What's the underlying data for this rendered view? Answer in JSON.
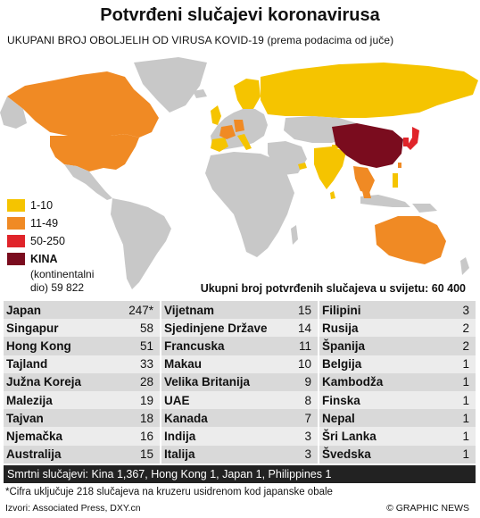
{
  "title": "Potvrđeni slučajevi koronavirusa",
  "subtitle": "UKUPANI BROJ OBOLJELIH OD VIRUSA KOVID-19  (prema podacima od juče)",
  "colors": {
    "land": "#c8c8c8",
    "cat_1_10": "#f5c400",
    "cat_11_49": "#f08a24",
    "cat_50_250": "#e0242a",
    "china": "#7a0c1e"
  },
  "legend": {
    "items": [
      {
        "label": "1-10",
        "color": "#f5c400"
      },
      {
        "label": "11-49",
        "color": "#f08a24"
      },
      {
        "label": "50-250",
        "color": "#e0242a"
      },
      {
        "label": "KINA",
        "color": "#7a0c1e"
      }
    ],
    "china_note_line1": "(kontinentalni",
    "china_note_line2": "dio) 59 822"
  },
  "world_total": "Ukupni broj potvrđenih slučajeva u svijetu: 60 400",
  "table": {
    "col1": [
      {
        "name": "Japan",
        "value": "247*"
      },
      {
        "name": "Singapur",
        "value": "58"
      },
      {
        "name": "Hong Kong",
        "value": "51"
      },
      {
        "name": "Tajland",
        "value": "33"
      },
      {
        "name": "Južna Koreja",
        "value": "28"
      },
      {
        "name": "Malezija",
        "value": "19"
      },
      {
        "name": "Tajvan",
        "value": "18"
      },
      {
        "name": "Njemačka",
        "value": "16"
      },
      {
        "name": "Australija",
        "value": "15"
      }
    ],
    "col2": [
      {
        "name": "Vijetnam",
        "value": "15"
      },
      {
        "name": "Sjedinjene Države",
        "value": "14"
      },
      {
        "name": "Francuska",
        "value": "11"
      },
      {
        "name": "Makau",
        "value": "10"
      },
      {
        "name": "Velika Britanija",
        "value": "9"
      },
      {
        "name": "UAE",
        "value": "8"
      },
      {
        "name": "Kanada",
        "value": "7"
      },
      {
        "name": "Indija",
        "value": "3"
      },
      {
        "name": "Italija",
        "value": "3"
      }
    ],
    "col3": [
      {
        "name": "Filipini",
        "value": "3"
      },
      {
        "name": "Rusija",
        "value": "2"
      },
      {
        "name": "Španija",
        "value": "2"
      },
      {
        "name": "Belgija",
        "value": "1"
      },
      {
        "name": "Kambodža",
        "value": "1"
      },
      {
        "name": "Finska",
        "value": "1"
      },
      {
        "name": "Nepal",
        "value": "1"
      },
      {
        "name": "Šri Lanka",
        "value": "1"
      },
      {
        "name": "Švedska",
        "value": "1"
      }
    ]
  },
  "deaths": "Smrtni slučajevi: Kina 1,367, Hong Kong 1, Japan 1, Philippines 1",
  "footnote": "*Cifra uključuje 218 slučajeva na kruzeru usidrenom kod japanske obale",
  "sources": "Izvori: Associated Press, DXY.cn",
  "credit": "© GRAPHIC NEWS"
}
